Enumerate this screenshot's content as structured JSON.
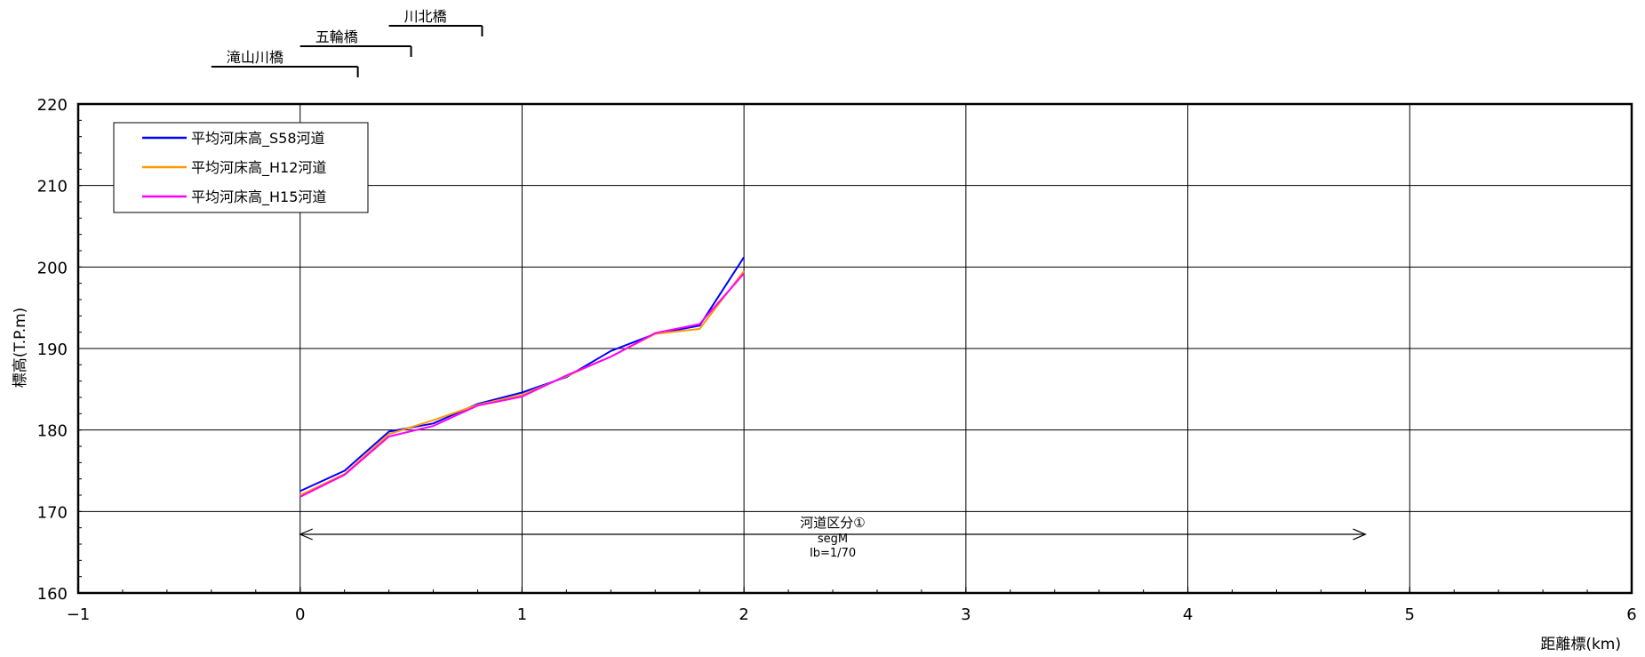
{
  "chart_data": {
    "type": "line",
    "xlabel": "距離標(km)",
    "ylabel": "標高(T.P.m)",
    "xlim": [
      -1,
      6
    ],
    "ylim": [
      160,
      220
    ],
    "x_ticks": [
      "−1",
      "0",
      "1",
      "2",
      "3",
      "4",
      "5",
      "6"
    ],
    "y_ticks": [
      "160",
      "170",
      "180",
      "190",
      "200",
      "210",
      "220"
    ],
    "grid": true,
    "legend_position": "top-left",
    "series": [
      {
        "name": "平均河床高_S58河道",
        "color": "#0000ff",
        "x": [
          0,
          0.2,
          0.4,
          0.6,
          0.8,
          1.0,
          1.2,
          1.4,
          1.6,
          1.8,
          2.0
        ],
        "y": [
          172.5,
          175.0,
          179.8,
          180.8,
          183.2,
          184.6,
          186.5,
          189.7,
          191.8,
          192.8,
          201.2
        ]
      },
      {
        "name": "平均河床高_H12河道",
        "color": "#ff9900",
        "x": [
          0,
          0.2,
          0.4,
          0.6,
          0.8,
          1.0,
          1.2,
          1.4,
          1.6,
          1.8,
          2.0
        ],
        "y": [
          172.0,
          174.6,
          179.5,
          181.2,
          183.1,
          184.3,
          186.6,
          189.0,
          191.8,
          192.4,
          199.5
        ]
      },
      {
        "name": "平均河床高_H15河道",
        "color": "#ff00ff",
        "x": [
          0,
          0.2,
          0.4,
          0.6,
          0.8,
          1.0,
          1.2,
          1.4,
          1.6,
          1.8,
          2.0
        ],
        "y": [
          171.8,
          174.5,
          179.2,
          180.5,
          183.0,
          184.1,
          186.7,
          189.0,
          191.9,
          193.0,
          199.2
        ]
      }
    ],
    "bridges": [
      {
        "name": "川北橋",
        "x_start": 0.4,
        "x_end": 0.82
      },
      {
        "name": "五輪橋",
        "x_start": 0.0,
        "x_end": 0.5
      },
      {
        "name": "滝山川橋",
        "x_start": -0.4,
        "x_end": 0.26
      }
    ],
    "annotation": {
      "lines": [
        "河道区分①",
        "segM",
        "Ib=1/70"
      ],
      "x_start": 0.0,
      "x_end": 4.8,
      "y": 167.2
    }
  }
}
